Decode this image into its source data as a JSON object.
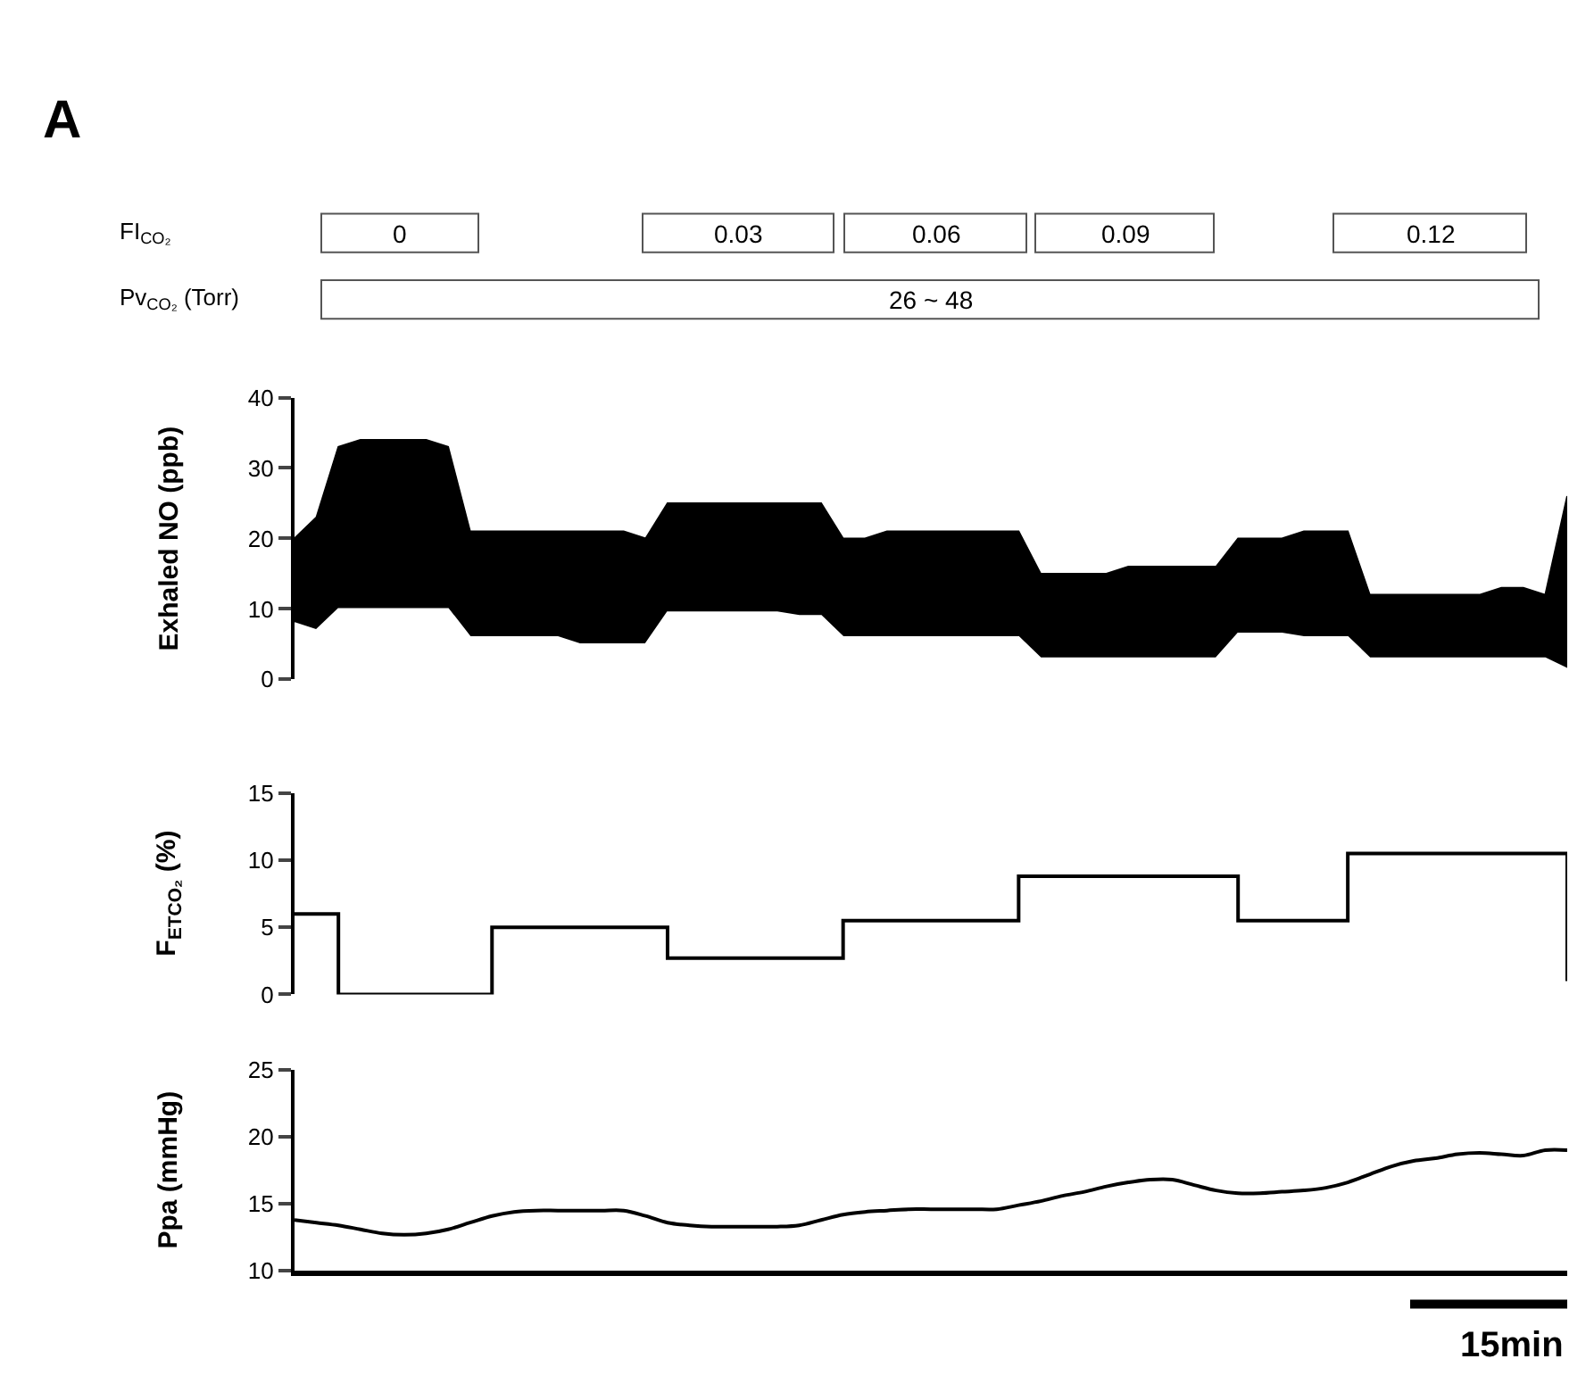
{
  "chart_data": [
    {
      "type": "area",
      "stacked": true,
      "title": "A",
      "ylabel": "Exhaled NO (ppb)",
      "categories": [
        null,
        null,
        null,
        null,
        null,
        null,
        null,
        null,
        null,
        null,
        null,
        null,
        null,
        null,
        null,
        null,
        null,
        null,
        null,
        null,
        null,
        null,
        null,
        null,
        null,
        null,
        null,
        null,
        null,
        null,
        null,
        null,
        null,
        null,
        null,
        null,
        null,
        null,
        null,
        null,
        null,
        null,
        null,
        null,
        null,
        null,
        null,
        null,
        null,
        null,
        null,
        null,
        null,
        null,
        null,
        null,
        null,
        null,
        null
      ],
      "series": [
        {
          "color": "#ffffff",
          "values": [
            8,
            7,
            10,
            10,
            10,
            10,
            10,
            10,
            6,
            6,
            6,
            6,
            6,
            5,
            5,
            5,
            5,
            9.5,
            9.5,
            9.5,
            9.5,
            9.5,
            9.5,
            9,
            9,
            6,
            6,
            6,
            6,
            6,
            6,
            6,
            6,
            6,
            3,
            3,
            3,
            3,
            3,
            3,
            3,
            3,
            3,
            6.5,
            6.5,
            6.5,
            6,
            6,
            6,
            3,
            3,
            3,
            3,
            3,
            3,
            3,
            3,
            3,
            1.5
          ]
        },
        {
          "color": "#000000",
          "values": [
            12,
            16,
            23,
            24,
            24,
            24,
            24,
            23,
            15,
            15,
            15,
            15,
            15,
            16,
            16,
            16,
            15,
            15.5,
            15.5,
            15.5,
            15.5,
            15.5,
            15.5,
            16,
            16,
            14,
            14,
            15,
            15,
            15,
            15,
            15,
            15,
            15,
            12,
            12,
            12,
            12,
            13,
            13,
            13,
            13,
            13,
            13.5,
            13.5,
            13.5,
            15,
            15,
            15,
            9,
            9,
            9,
            9,
            9,
            9,
            10,
            10,
            9,
            24.5
          ]
        }
      ],
      "ylim": [
        0,
        40
      ],
      "yticks": [
        0,
        10,
        20,
        30,
        40
      ],
      "tick_labels": "y",
      "annotations": [
        "FI$_{CO₂}$",
        "0",
        "0.03",
        "0.06",
        "0.09",
        "0.12",
        "Pv$_{CO₂}$ (Torr)",
        "26 ~ 48"
      ]
    },
    {
      "type": "step",
      "ylabel": "F$_{ETCO₂}$ (%)",
      "categories": [
        null,
        null,
        null,
        null,
        null,
        null,
        null,
        null,
        null,
        null,
        null,
        null,
        null,
        null,
        null,
        null,
        null,
        null,
        null,
        null,
        null,
        null,
        null,
        null,
        null,
        null,
        null,
        null,
        null,
        null,
        null,
        null,
        null,
        null,
        null,
        null,
        null,
        null,
        null,
        null,
        null,
        null,
        null,
        null,
        null,
        null,
        null,
        null,
        null,
        null,
        null,
        null,
        null,
        null,
        null,
        null,
        null,
        null,
        null
      ],
      "series": [
        {
          "color": "#000000",
          "values": [
            6,
            6,
            0,
            0,
            0,
            0,
            0,
            0,
            0,
            5,
            5,
            5,
            5,
            5,
            5,
            5,
            5,
            2.7,
            2.7,
            2.7,
            2.7,
            2.7,
            2.7,
            2.7,
            2.7,
            5.5,
            5.5,
            5.5,
            5.5,
            5.5,
            5.5,
            5.5,
            5.5,
            8.8,
            8.8,
            8.8,
            8.8,
            8.8,
            8.8,
            8.8,
            8.8,
            8.8,
            8.8,
            5.5,
            5.5,
            5.5,
            5.5,
            5.5,
            10.5,
            10.5,
            10.5,
            10.5,
            10.5,
            10.5,
            10.5,
            10.5,
            10.5,
            10.5,
            1
          ]
        }
      ],
      "ylim": [
        0,
        15
      ],
      "yticks": [
        0,
        5,
        10,
        15
      ],
      "tick_labels": "y"
    },
    {
      "type": "line",
      "ylabel": "Ppa (mmHg)",
      "categories": [
        null,
        null,
        null,
        null,
        null,
        null,
        null,
        null,
        null,
        null,
        null,
        null,
        null,
        null,
        null,
        null,
        null,
        null,
        null,
        null,
        null,
        null,
        null,
        null,
        null,
        null,
        null,
        null,
        null,
        null,
        null,
        null,
        null,
        null,
        null,
        null,
        null,
        null,
        null,
        null,
        null,
        null,
        null,
        null,
        null,
        null,
        null,
        null,
        null,
        null,
        null,
        null,
        null,
        null,
        null,
        null,
        null,
        null,
        null
      ],
      "series": [
        {
          "color": "#000000",
          "values": [
            13.8,
            13.6,
            13.4,
            13.1,
            12.8,
            12.7,
            12.8,
            13.1,
            13.6,
            14.1,
            14.4,
            14.5,
            14.5,
            14.5,
            14.5,
            14.5,
            14.1,
            13.6,
            13.4,
            13.3,
            13.3,
            13.3,
            13.3,
            13.4,
            13.8,
            14.2,
            14.4,
            14.5,
            14.6,
            14.6,
            14.6,
            14.6,
            14.6,
            14.9,
            15.2,
            15.6,
            15.9,
            16.3,
            16.6,
            16.8,
            16.8,
            16.4,
            16.0,
            15.8,
            15.8,
            15.9,
            16.0,
            16.2,
            16.6,
            17.2,
            17.8,
            18.2,
            18.4,
            18.7,
            18.8,
            18.7,
            18.6,
            19.0,
            19.0
          ]
        }
      ],
      "ylim": [
        10,
        25
      ],
      "yticks": [
        10,
        15,
        20,
        25
      ],
      "tick_labels": "y",
      "annotations": [
        "15min"
      ]
    }
  ]
}
